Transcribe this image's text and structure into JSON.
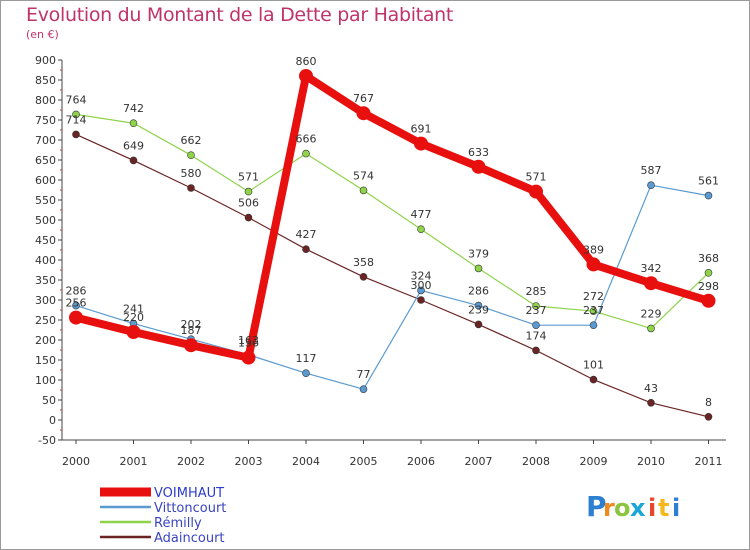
{
  "chart_data": {
    "type": "line",
    "title": "Evolution du Montant de la Dette par Habitant",
    "subtitle": "(en €)",
    "xlabel": "",
    "ylabel": "",
    "categories": [
      "2000",
      "2001",
      "2002",
      "2003",
      "2004",
      "2005",
      "2006",
      "2007",
      "2008",
      "2009",
      "2010",
      "2011"
    ],
    "ylim": [
      -50,
      900
    ],
    "yticks": [
      -50,
      0,
      50,
      100,
      150,
      200,
      250,
      300,
      350,
      400,
      450,
      500,
      550,
      600,
      650,
      700,
      750,
      800,
      850,
      900
    ],
    "grid": false,
    "legend_position": "bottom-left",
    "series": [
      {
        "name": "VOIMHAUT",
        "color": "#e8100f",
        "width": 8,
        "marker": 7,
        "values": [
          256,
          220,
          187,
          156,
          860,
          767,
          691,
          633,
          571,
          389,
          342,
          298
        ]
      },
      {
        "name": "Vittoncourt",
        "color": "#5b9ad0",
        "width": 1.2,
        "marker": 3.5,
        "values": [
          286,
          241,
          202,
          163,
          117,
          77,
          324,
          286,
          237,
          237,
          587,
          561
        ]
      },
      {
        "name": "Rémilly",
        "color": "#8ed34a",
        "width": 1.2,
        "marker": 3.5,
        "values": [
          764,
          742,
          662,
          571,
          666,
          574,
          477,
          379,
          285,
          272,
          229,
          368
        ]
      },
      {
        "name": "Adaincourt",
        "color": "#6b2424",
        "width": 1.2,
        "marker": 3.5,
        "values": [
          714,
          649,
          580,
          506,
          427,
          358,
          300,
          239,
          174,
          101,
          43,
          8
        ]
      }
    ],
    "data_labels": [
      {
        "series": 0,
        "point": 0,
        "text": "256"
      },
      {
        "series": 0,
        "point": 1,
        "text": "220"
      },
      {
        "series": 0,
        "point": 2,
        "text": "187"
      },
      {
        "series": 0,
        "point": 3,
        "text": "156"
      },
      {
        "series": 0,
        "point": 4,
        "text": "860"
      },
      {
        "series": 0,
        "point": 5,
        "text": "767"
      },
      {
        "series": 0,
        "point": 6,
        "text": "691"
      },
      {
        "series": 0,
        "point": 7,
        "text": "633"
      },
      {
        "series": 0,
        "point": 8,
        "text": "571"
      },
      {
        "series": 0,
        "point": 9,
        "text": "389"
      },
      {
        "series": 0,
        "point": 10,
        "text": "342"
      },
      {
        "series": 0,
        "point": 11,
        "text": "298"
      },
      {
        "series": 1,
        "point": 0,
        "text": "286"
      },
      {
        "series": 1,
        "point": 1,
        "text": "241"
      },
      {
        "series": 1,
        "point": 2,
        "text": "202"
      },
      {
        "series": 1,
        "point": 3,
        "text": "163"
      },
      {
        "series": 1,
        "point": 4,
        "text": "117"
      },
      {
        "series": 1,
        "point": 5,
        "text": "77"
      },
      {
        "series": 1,
        "point": 6,
        "text": "324"
      },
      {
        "series": 1,
        "point": 7,
        "text": "286"
      },
      {
        "series": 1,
        "point": 8,
        "text": "237"
      },
      {
        "series": 1,
        "point": 9,
        "text": "237"
      },
      {
        "series": 1,
        "point": 10,
        "text": "587"
      },
      {
        "series": 1,
        "point": 11,
        "text": "561"
      },
      {
        "series": 2,
        "point": 0,
        "text": "764"
      },
      {
        "series": 2,
        "point": 1,
        "text": "742"
      },
      {
        "series": 2,
        "point": 2,
        "text": "662"
      },
      {
        "series": 2,
        "point": 3,
        "text": "571"
      },
      {
        "series": 2,
        "point": 4,
        "text": "666"
      },
      {
        "series": 2,
        "point": 5,
        "text": "574"
      },
      {
        "series": 2,
        "point": 6,
        "text": "477"
      },
      {
        "series": 2,
        "point": 7,
        "text": "379"
      },
      {
        "series": 2,
        "point": 8,
        "text": "285"
      },
      {
        "series": 2,
        "point": 9,
        "text": "272"
      },
      {
        "series": 2,
        "point": 10,
        "text": "229"
      },
      {
        "series": 2,
        "point": 11,
        "text": "368"
      },
      {
        "series": 3,
        "point": 0,
        "text": "714"
      },
      {
        "series": 3,
        "point": 1,
        "text": "649"
      },
      {
        "series": 3,
        "point": 2,
        "text": "580"
      },
      {
        "series": 3,
        "point": 3,
        "text": "506"
      },
      {
        "series": 3,
        "point": 4,
        "text": "427"
      },
      {
        "series": 3,
        "point": 5,
        "text": "358"
      },
      {
        "series": 3,
        "point": 6,
        "text": "300"
      },
      {
        "series": 3,
        "point": 7,
        "text": "239"
      },
      {
        "series": 3,
        "point": 8,
        "text": "174"
      },
      {
        "series": 3,
        "point": 9,
        "text": "101"
      },
      {
        "series": 3,
        "point": 10,
        "text": "43"
      },
      {
        "series": 3,
        "point": 11,
        "text": "8"
      }
    ]
  },
  "logo": {
    "letters": [
      "P",
      "r",
      "o",
      "x",
      "i",
      "t",
      "i"
    ],
    "colors": [
      "#2d7fd1",
      "#f08a1c",
      "#8bc540",
      "#1aa6d9",
      "#e8462b",
      "#f6b81c",
      "#2d7fd1"
    ]
  }
}
